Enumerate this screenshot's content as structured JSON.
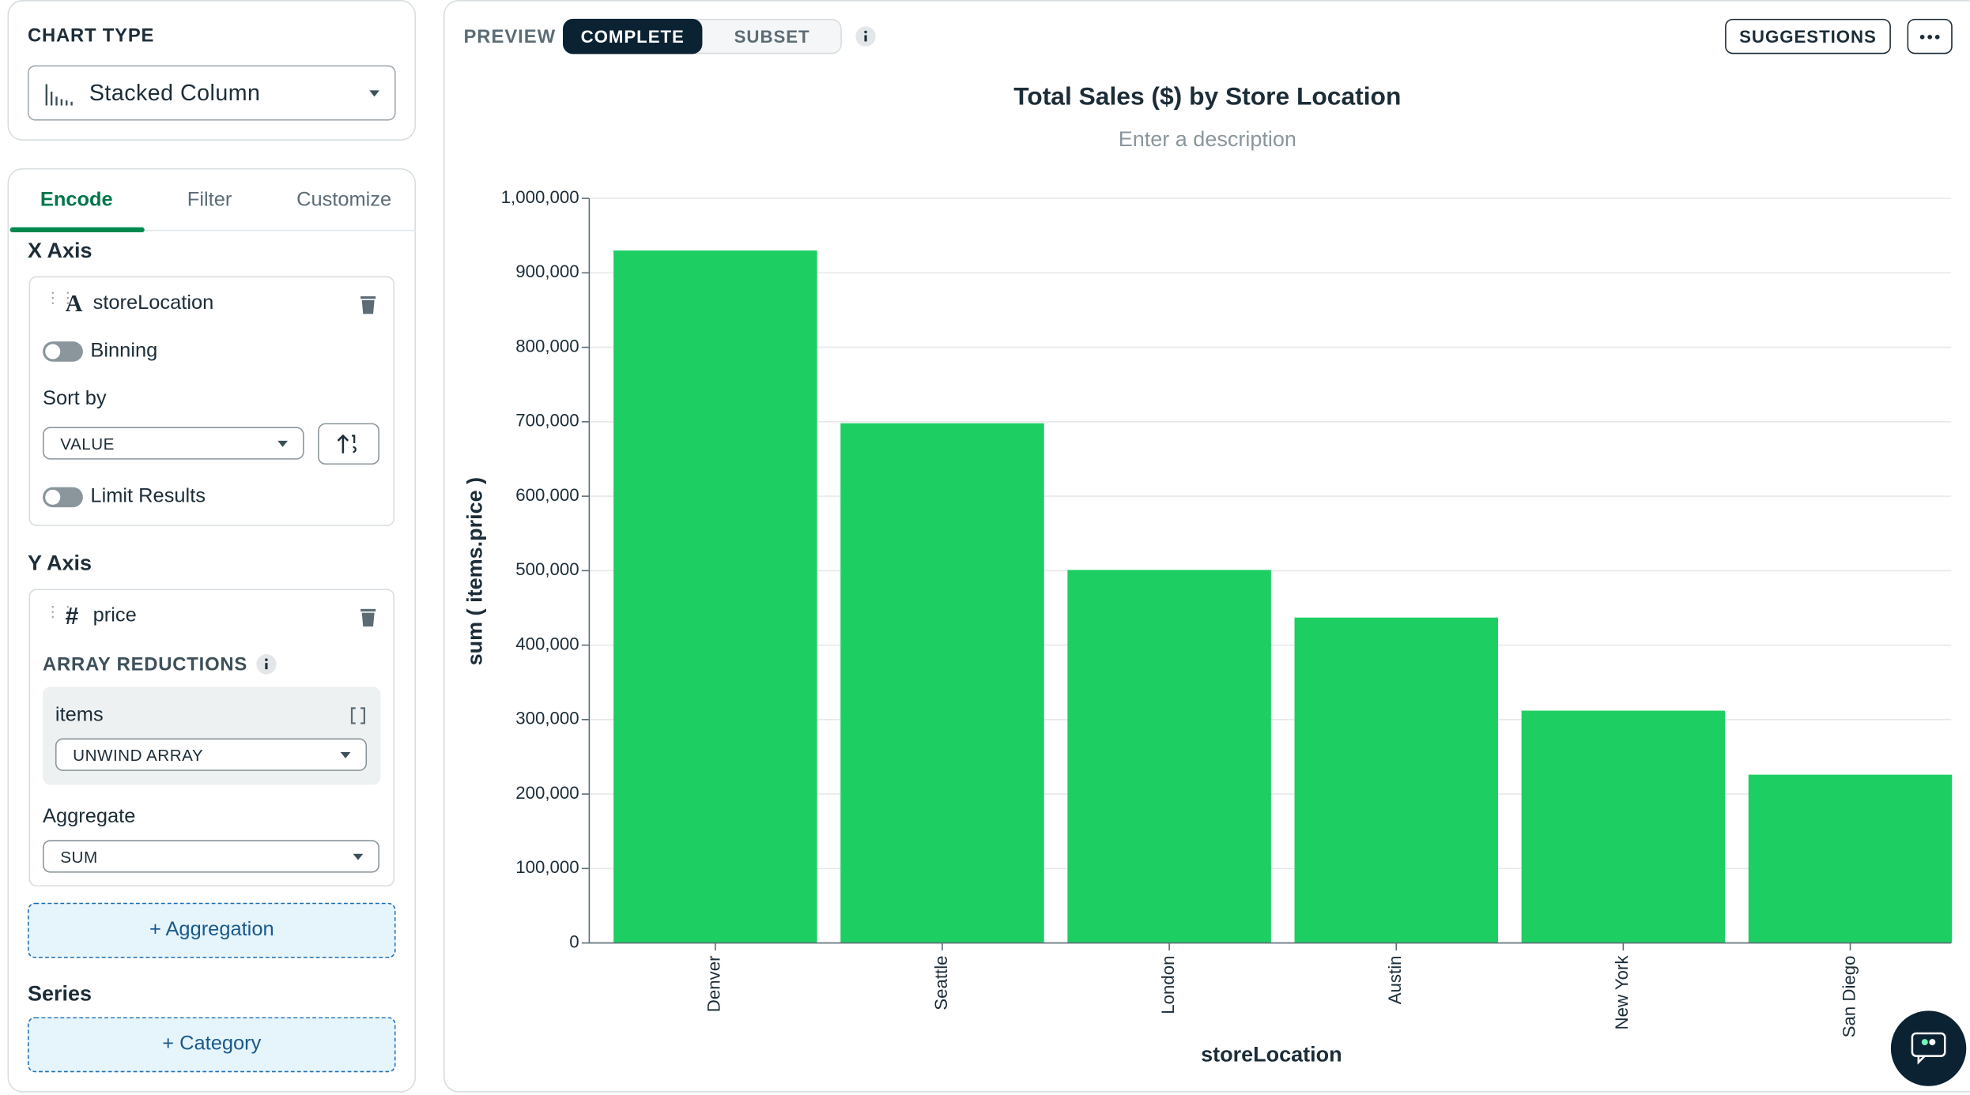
{
  "sidebar": {
    "chart_type_label": "CHART TYPE",
    "chart_type": "Stacked Column",
    "tabs": [
      "Encode",
      "Filter",
      "Customize"
    ],
    "x_axis": {
      "heading": "X Axis",
      "field_icon": "A",
      "field": "storeLocation",
      "binning": "Binning",
      "sort_by": "Sort by",
      "sort_value": "VALUE",
      "limit_results": "Limit Results"
    },
    "y_axis": {
      "heading": "Y Axis",
      "field_icon": "#",
      "field": "price",
      "array_reductions": "ARRAY REDUCTIONS",
      "array_field": "items",
      "reduction": "UNWIND ARRAY",
      "aggregate": "Aggregate",
      "aggregate_value": "SUM",
      "add_aggregation": "+ Aggregation"
    },
    "series": {
      "heading": "Series",
      "add_category": "+ Category"
    }
  },
  "toolbar": {
    "preview": "PREVIEW",
    "complete": "COMPLETE",
    "subset": "SUBSET",
    "suggestions": "SUGGESTIONS"
  },
  "chart_data": {
    "type": "bar",
    "title": "Total Sales ($) by Store Location",
    "subtitle": "Enter a description",
    "x_label": "storeLocation",
    "y_label": "sum ( items.price )",
    "categories": [
      "Denver",
      "Seattle",
      "London",
      "Austin",
      "New York",
      "San Diego"
    ],
    "values": [
      930000,
      698000,
      501000,
      437000,
      312000,
      226000
    ],
    "color": "#1dce62",
    "ylim": [
      0,
      1000000
    ],
    "yticks": [
      0,
      {
        "value": 100000,
        "label": "100,000"
      },
      {
        "value": 200000,
        "label": "200,000"
      },
      {
        "value": 300000,
        "label": "300,000"
      },
      {
        "value": 400000,
        "label": "400,000"
      },
      {
        "value": 500000,
        "label": "500,000"
      },
      {
        "value": 600000,
        "label": "600,000"
      },
      {
        "value": 700000,
        "label": "700,000"
      },
      {
        "value": 800000,
        "label": "800,000"
      },
      {
        "value": 900000,
        "label": "900,000"
      },
      {
        "value": 1000000,
        "label": "1,000,000"
      }
    ],
    "grid": true
  }
}
